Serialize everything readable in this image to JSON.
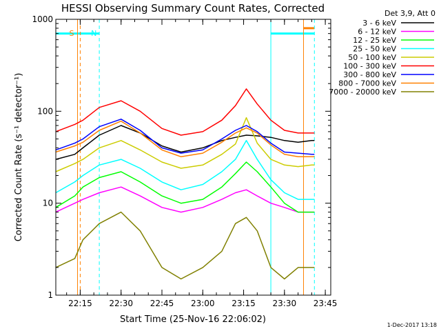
{
  "chart_data": {
    "type": "line",
    "title": "HESSI Observing Summary Count Rates, Corrected",
    "xlabel": "Start Time (25-Nov-16 22:06:02)",
    "ylabel": "Corrected Count Rate (s⁻¹ detector⁻¹)",
    "x_unit": "time (HH:MM, 25-Nov-16)",
    "xlim": [
      "22:06:02",
      "23:47"
    ],
    "ylim": [
      1,
      1000
    ],
    "y_scale": "log",
    "x_ticks": [
      "22:15",
      "22:30",
      "22:45",
      "23:00",
      "23:15",
      "23:30",
      "23:45"
    ],
    "y_ticks": [
      "1",
      "10",
      "100",
      "1000"
    ],
    "legend_header": "Det 3,9, Att 0",
    "legend_position": "right, outside plot",
    "footer_date": "1-Dec-2017 13:18",
    "grid": false,
    "series": [
      {
        "name": "3 - 6 keV",
        "color": "#000000",
        "x": [
          "22:06",
          "22:13",
          "22:16",
          "22:22",
          "22:30",
          "22:37",
          "22:45",
          "22:52",
          "23:00",
          "23:07",
          "23:12",
          "23:16",
          "23:20",
          "23:25",
          "23:30",
          "23:35",
          "23:40",
          "23:41"
        ],
        "values": [
          30,
          34,
          40,
          55,
          70,
          58,
          42,
          36,
          40,
          48,
          52,
          55,
          54,
          52,
          48,
          46,
          48,
          48
        ]
      },
      {
        "name": "6 - 12 keV",
        "color": "#ff00ff",
        "x": [
          "22:06",
          "22:13",
          "22:16",
          "22:22",
          "22:30",
          "22:37",
          "22:45",
          "22:52",
          "23:00",
          "23:07",
          "23:12",
          "23:16",
          "23:20",
          "23:25",
          "23:30",
          "23:35",
          "23:40",
          "23:41"
        ],
        "values": [
          8,
          10,
          11,
          13,
          15,
          12,
          9,
          8,
          9,
          11,
          13,
          14,
          12,
          10,
          9,
          8,
          8,
          8
        ]
      },
      {
        "name": "12 - 25 keV",
        "color": "#00ff00",
        "x": [
          "22:06",
          "22:13",
          "22:16",
          "22:22",
          "22:30",
          "22:37",
          "22:45",
          "22:52",
          "23:00",
          "23:07",
          "23:12",
          "23:16",
          "23:20",
          "23:25",
          "23:30",
          "23:35",
          "23:40",
          "23:41"
        ],
        "values": [
          9,
          12,
          15,
          19,
          22,
          17,
          12,
          10,
          11,
          15,
          21,
          28,
          22,
          15,
          10,
          8,
          8,
          8
        ]
      },
      {
        "name": "25 - 50 keV",
        "color": "#00ffff",
        "x": [
          "22:06",
          "22:13",
          "22:16",
          "22:22",
          "22:30",
          "22:37",
          "22:45",
          "22:52",
          "23:00",
          "23:07",
          "23:12",
          "23:16",
          "23:20",
          "23:25",
          "23:30",
          "23:35",
          "23:40",
          "23:41"
        ],
        "values": [
          13,
          17,
          20,
          26,
          30,
          24,
          17,
          14,
          16,
          22,
          30,
          48,
          30,
          18,
          13,
          11,
          11,
          11
        ]
      },
      {
        "name": "50 - 100 keV",
        "color": "#cccc00",
        "x": [
          "22:06",
          "22:13",
          "22:16",
          "22:22",
          "22:30",
          "22:37",
          "22:45",
          "22:52",
          "23:00",
          "23:07",
          "23:12",
          "23:16",
          "23:20",
          "23:25",
          "23:30",
          "23:35",
          "23:40",
          "23:41"
        ],
        "values": [
          22,
          27,
          30,
          40,
          48,
          38,
          28,
          24,
          26,
          34,
          44,
          85,
          45,
          30,
          26,
          25,
          26,
          26
        ]
      },
      {
        "name": "100 - 300 keV",
        "color": "#ff0000",
        "x": [
          "22:06",
          "22:13",
          "22:16",
          "22:22",
          "22:30",
          "22:37",
          "22:45",
          "22:52",
          "23:00",
          "23:07",
          "23:12",
          "23:16",
          "23:20",
          "23:25",
          "23:30",
          "23:35",
          "23:40",
          "23:41"
        ],
        "values": [
          60,
          72,
          80,
          110,
          130,
          100,
          65,
          55,
          60,
          80,
          115,
          175,
          120,
          80,
          62,
          58,
          58,
          58
        ]
      },
      {
        "name": "300 - 800 keV",
        "color": "#0000ff",
        "x": [
          "22:06",
          "22:13",
          "22:16",
          "22:22",
          "22:30",
          "22:37",
          "22:45",
          "22:52",
          "23:00",
          "23:07",
          "23:12",
          "23:16",
          "23:20",
          "23:25",
          "23:30",
          "23:35",
          "23:40",
          "23:41"
        ],
        "values": [
          38,
          45,
          50,
          68,
          82,
          62,
          40,
          35,
          38,
          50,
          62,
          70,
          60,
          45,
          36,
          35,
          34,
          34
        ]
      },
      {
        "name": "800 - 7000 keV",
        "color": "#ff8000",
        "x": [
          "22:06",
          "22:13",
          "22:16",
          "22:22",
          "22:30",
          "22:37",
          "22:45",
          "22:52",
          "23:00",
          "23:07",
          "23:12",
          "23:16",
          "23:20",
          "23:25",
          "23:30",
          "23:35",
          "23:40",
          "23:41"
        ],
        "values": [
          36,
          42,
          46,
          62,
          78,
          58,
          38,
          32,
          35,
          46,
          58,
          66,
          58,
          43,
          34,
          32,
          32,
          32
        ]
      },
      {
        "name": "7000 - 20000 keV",
        "color": "#808000",
        "x": [
          "22:06",
          "22:13",
          "22:16",
          "22:22",
          "22:30",
          "22:37",
          "22:45",
          "22:52",
          "23:00",
          "23:07",
          "23:12",
          "23:16",
          "23:20",
          "23:25",
          "23:30",
          "23:35",
          "23:40",
          "23:41"
        ],
        "values": [
          2,
          2.5,
          4,
          6,
          8,
          5,
          2,
          1.5,
          2,
          3,
          6,
          7,
          5,
          2,
          1.5,
          2,
          2,
          2
        ]
      }
    ],
    "annotations": [
      {
        "text": "S",
        "x": "22:14",
        "color": "#ff8000"
      },
      {
        "text": "N",
        "x": "22:22",
        "color": "#00ffff"
      }
    ],
    "vertical_markers": [
      {
        "x": "22:14",
        "color": "#ff8000",
        "style": "solid"
      },
      {
        "x": "22:15",
        "color": "#ff8000",
        "style": "dashed"
      },
      {
        "x": "22:22",
        "color": "#00ffff",
        "style": "dashed"
      },
      {
        "x": "23:25",
        "color": "#00ffff",
        "style": "solid"
      },
      {
        "x": "23:37",
        "color": "#ff8000",
        "style": "solid"
      },
      {
        "x": "23:41",
        "color": "#00ffff",
        "style": "dashed"
      }
    ],
    "flag_bars": [
      {
        "from": "22:06",
        "to": "22:22",
        "level": 700,
        "color": "#00ffff"
      },
      {
        "from": "23:25",
        "to": "23:41",
        "level": 700,
        "color": "#00ffff"
      },
      {
        "from": "23:37",
        "to": "23:41",
        "level": 800,
        "color": "#ff8000"
      }
    ]
  }
}
